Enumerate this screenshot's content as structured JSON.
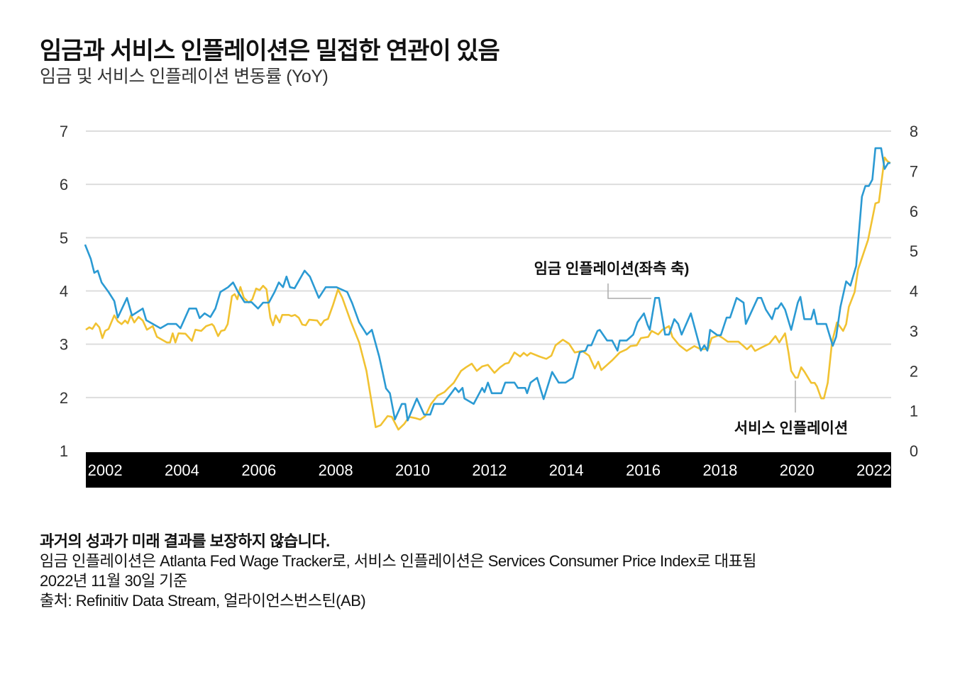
{
  "header": {
    "title": "임금과 서비스 인플레이션은 밀접한 연관이 있음",
    "subtitle": "임금 및 서비스 인플레이션 변동률 (YoY)"
  },
  "chart_data": {
    "type": "line",
    "title": "임금과 서비스 인플레이션은 밀접한 연관이 있음",
    "subtitle": "임금 및 서비스 인플레이션 변동률 (YoY)",
    "xlabel": "",
    "ylabel": "",
    "xlim": [
      2002.0,
      2022.95
    ],
    "x_tick_labels": [
      "2002",
      "2004",
      "2006",
      "2008",
      "2010",
      "2012",
      "2014",
      "2016",
      "2018",
      "2020",
      "2022"
    ],
    "y_left": {
      "lim": [
        1,
        7
      ],
      "ticks": [
        "1",
        "2",
        "3",
        "4",
        "5",
        "6",
        "7"
      ]
    },
    "y_right": {
      "lim": [
        0,
        8
      ],
      "ticks": [
        "0",
        "1",
        "2",
        "3",
        "4",
        "5",
        "6",
        "7",
        "8"
      ]
    },
    "grid": true,
    "legend": "none (inline annotations)",
    "colors": {
      "wage": "#2b9ad3",
      "services": "#f1c232",
      "axis_band": "#000000",
      "grid": "#dddddd"
    },
    "series": [
      {
        "name": "임금 인플레이션(좌측 축)",
        "axis": "left",
        "x": [
          2001.98,
          2002.13,
          2002.22,
          2002.31,
          2002.41,
          2002.59,
          2002.74,
          2002.83,
          2003.07,
          2003.2,
          2003.48,
          2003.57,
          2003.94,
          2004.13,
          2004.35,
          2004.46,
          2004.69,
          2004.87,
          2004.96,
          2005.09,
          2005.24,
          2005.37,
          2005.5,
          2005.7,
          2005.83,
          2005.96,
          2006.13,
          2006.31,
          2006.48,
          2006.61,
          2006.76,
          2006.91,
          2007.02,
          2007.13,
          2007.22,
          2007.31,
          2007.43,
          2007.69,
          2007.83,
          2008.06,
          2008.24,
          2008.52,
          2008.8,
          2008.93,
          2009.11,
          2009.31,
          2009.44,
          2009.63,
          2009.72,
          2009.81,
          2009.91,
          2010.04,
          2010.22,
          2010.31,
          2010.37,
          2010.61,
          2010.8,
          2010.96,
          2011.06,
          2011.3,
          2011.61,
          2011.7,
          2011.8,
          2011.85,
          2012.09,
          2012.31,
          2012.37,
          2012.46,
          2012.56,
          2012.81,
          2012.91,
          2013.15,
          2013.24,
          2013.43,
          2013.48,
          2013.57,
          2013.74,
          2013.91,
          2014.13,
          2014.3,
          2014.48,
          2014.67,
          2014.85,
          2015.0,
          2015.06,
          2015.15,
          2015.31,
          2015.37,
          2015.56,
          2015.69,
          2015.83,
          2015.89,
          2016.07,
          2016.24,
          2016.35,
          2016.52,
          2016.61,
          2016.67,
          2016.81,
          2016.91,
          2017.07,
          2017.17,
          2017.31,
          2017.41,
          2017.5,
          2017.74,
          2018.0,
          2018.09,
          2018.17,
          2018.24,
          2018.43,
          2018.52,
          2018.67,
          2018.76,
          2018.93,
          2019.11,
          2019.17,
          2019.48,
          2019.57,
          2019.69,
          2019.85,
          2019.94,
          2020.0,
          2020.09,
          2020.19,
          2020.35,
          2020.52,
          2020.59,
          2020.69,
          2020.87,
          2020.94,
          2021.02,
          2021.26,
          2021.43,
          2021.52,
          2021.63,
          2021.78,
          2021.89,
          2022.04,
          2022.19,
          2022.28,
          2022.37,
          2022.46,
          2022.54,
          2022.69,
          2022.78,
          2022.87,
          2022.93
        ],
        "values": [
          4.87,
          4.6,
          4.34,
          4.38,
          4.16,
          3.98,
          3.81,
          3.5,
          3.87,
          3.54,
          3.67,
          3.45,
          3.3,
          3.38,
          3.38,
          3.3,
          3.67,
          3.67,
          3.49,
          3.58,
          3.51,
          3.67,
          3.98,
          4.07,
          4.16,
          3.98,
          3.79,
          3.79,
          3.67,
          3.78,
          3.78,
          3.98,
          4.16,
          4.07,
          4.27,
          4.07,
          4.05,
          4.38,
          4.27,
          3.87,
          4.07,
          4.07,
          3.98,
          3.77,
          3.41,
          3.18,
          3.27,
          2.77,
          2.48,
          2.17,
          2.08,
          1.59,
          1.88,
          1.88,
          1.57,
          1.98,
          1.68,
          1.68,
          1.88,
          1.88,
          2.18,
          2.1,
          2.18,
          1.98,
          1.88,
          2.18,
          2.1,
          2.28,
          2.08,
          2.08,
          2.28,
          2.28,
          2.18,
          2.18,
          2.08,
          2.28,
          2.37,
          1.97,
          2.48,
          2.28,
          2.28,
          2.37,
          2.85,
          2.88,
          2.98,
          2.98,
          3.25,
          3.27,
          3.07,
          3.07,
          2.88,
          3.07,
          3.07,
          3.18,
          3.41,
          3.58,
          3.37,
          3.27,
          3.87,
          3.87,
          3.18,
          3.18,
          3.47,
          3.38,
          3.18,
          3.58,
          2.88,
          2.98,
          2.88,
          3.27,
          3.17,
          3.17,
          3.5,
          3.5,
          3.87,
          3.78,
          3.38,
          3.87,
          3.87,
          3.65,
          3.47,
          3.67,
          3.67,
          3.77,
          3.65,
          3.27,
          3.78,
          3.89,
          3.47,
          3.47,
          3.65,
          3.38,
          3.38,
          2.97,
          3.14,
          3.7,
          4.18,
          4.1,
          4.47,
          5.77,
          5.97,
          5.97,
          6.09,
          6.68,
          6.68,
          6.29,
          6.4,
          6.4
        ]
      },
      {
        "name": "서비스 인플레이션",
        "axis": "right",
        "x": [
          2002.0,
          2002.09,
          2002.17,
          2002.26,
          2002.35,
          2002.43,
          2002.5,
          2002.59,
          2002.74,
          2002.83,
          2002.93,
          2003.02,
          2003.09,
          2003.17,
          2003.26,
          2003.37,
          2003.48,
          2003.59,
          2003.74,
          2003.85,
          2004.11,
          2004.19,
          2004.26,
          2004.33,
          2004.41,
          2004.59,
          2004.76,
          2004.85,
          2005.0,
          2005.13,
          2005.28,
          2005.33,
          2005.44,
          2005.52,
          2005.61,
          2005.69,
          2005.8,
          2005.87,
          2005.94,
          2006.02,
          2006.11,
          2006.24,
          2006.33,
          2006.43,
          2006.52,
          2006.61,
          2006.7,
          2006.8,
          2006.87,
          2006.94,
          2007.04,
          2007.11,
          2007.28,
          2007.35,
          2007.44,
          2007.54,
          2007.63,
          2007.72,
          2007.81,
          2008.02,
          2008.11,
          2008.2,
          2008.3,
          2008.43,
          2008.56,
          2008.67,
          2008.89,
          2009.11,
          2009.3,
          2009.54,
          2009.67,
          2009.85,
          2009.96,
          2010.13,
          2010.28,
          2010.41,
          2010.56,
          2010.7,
          2010.83,
          2010.98,
          2011.15,
          2011.33,
          2011.44,
          2011.57,
          2011.76,
          2011.89,
          2012.04,
          2012.17,
          2012.31,
          2012.46,
          2012.63,
          2012.78,
          2012.91,
          2013.0,
          2013.15,
          2013.3,
          2013.39,
          2013.48,
          2013.57,
          2013.8,
          2013.98,
          2014.11,
          2014.22,
          2014.41,
          2014.57,
          2014.72,
          2014.91,
          2015.09,
          2015.24,
          2015.33,
          2015.41,
          2015.56,
          2015.7,
          2015.89,
          2016.07,
          2016.17,
          2016.33,
          2016.44,
          2016.63,
          2016.72,
          2016.89,
          2017.0,
          2017.17,
          2017.26,
          2017.44,
          2017.63,
          2017.83,
          2018.0,
          2018.19,
          2018.28,
          2018.46,
          2018.57,
          2018.7,
          2018.98,
          2019.11,
          2019.2,
          2019.31,
          2019.41,
          2019.59,
          2019.78,
          2019.94,
          2020.04,
          2020.19,
          2020.28,
          2020.35,
          2020.46,
          2020.52,
          2020.61,
          2020.7,
          2020.87,
          2020.96,
          2021.02,
          2021.13,
          2021.2,
          2021.3,
          2021.41,
          2021.54,
          2021.7,
          2021.78,
          2021.85,
          2022.0,
          2022.09,
          2022.35,
          2022.54,
          2022.63,
          2022.78,
          2022.85,
          2022.93
        ],
        "values": [
          3.03,
          3.09,
          3.05,
          3.19,
          3.09,
          2.82,
          3.0,
          3.05,
          3.39,
          3.24,
          3.17,
          3.26,
          3.19,
          3.39,
          3.21,
          3.35,
          3.26,
          3.03,
          3.12,
          2.85,
          2.71,
          2.71,
          2.94,
          2.71,
          2.94,
          2.93,
          2.75,
          3.03,
          3.0,
          3.12,
          3.17,
          3.12,
          2.87,
          3.0,
          3.02,
          3.17,
          3.87,
          3.92,
          3.79,
          4.1,
          3.83,
          3.71,
          3.79,
          4.06,
          4.02,
          4.13,
          4.04,
          3.33,
          3.14,
          3.39,
          3.21,
          3.4,
          3.4,
          3.37,
          3.4,
          3.33,
          3.16,
          3.14,
          3.28,
          3.26,
          3.14,
          3.26,
          3.3,
          3.65,
          4.04,
          3.83,
          3.24,
          2.71,
          2.0,
          0.59,
          0.64,
          0.87,
          0.85,
          0.53,
          0.67,
          0.85,
          0.82,
          0.78,
          0.87,
          1.17,
          1.38,
          1.47,
          1.58,
          1.7,
          2.0,
          2.09,
          2.18,
          2.0,
          2.11,
          2.15,
          1.95,
          2.09,
          2.18,
          2.2,
          2.46,
          2.36,
          2.45,
          2.38,
          2.45,
          2.36,
          2.3,
          2.38,
          2.64,
          2.78,
          2.68,
          2.46,
          2.5,
          2.38,
          2.06,
          2.23,
          2.02,
          2.15,
          2.27,
          2.46,
          2.54,
          2.62,
          2.64,
          2.82,
          2.85,
          3.0,
          2.91,
          3.03,
          3.12,
          2.85,
          2.64,
          2.5,
          2.62,
          2.54,
          2.55,
          2.82,
          2.89,
          2.82,
          2.73,
          2.73,
          2.62,
          2.54,
          2.64,
          2.5,
          2.59,
          2.68,
          2.87,
          2.71,
          2.94,
          2.46,
          2.0,
          1.83,
          1.83,
          2.09,
          1.97,
          1.7,
          1.7,
          1.61,
          1.31,
          1.31,
          1.7,
          2.71,
          3.21,
          3.0,
          3.17,
          3.6,
          3.97,
          4.54,
          5.28,
          6.19,
          6.22,
          7.34,
          7.25,
          7.2
        ]
      }
    ],
    "annotations": [
      "임금 인플레이션(좌측 축)",
      "서비스 인플레이션"
    ]
  },
  "footer": {
    "disclaimer": "과거의 성과가 미래 결과를 보장하지 않습니다.",
    "note": "임금 인플레이션은 Atlanta Fed Wage Tracker로, 서비스 인플레이션은 Services Consumer Price Index로 대표됨",
    "date": "2022년 11월 30일 기준",
    "source": "출처: Refinitiv Data Stream, 얼라이언스번스틴(AB)"
  }
}
